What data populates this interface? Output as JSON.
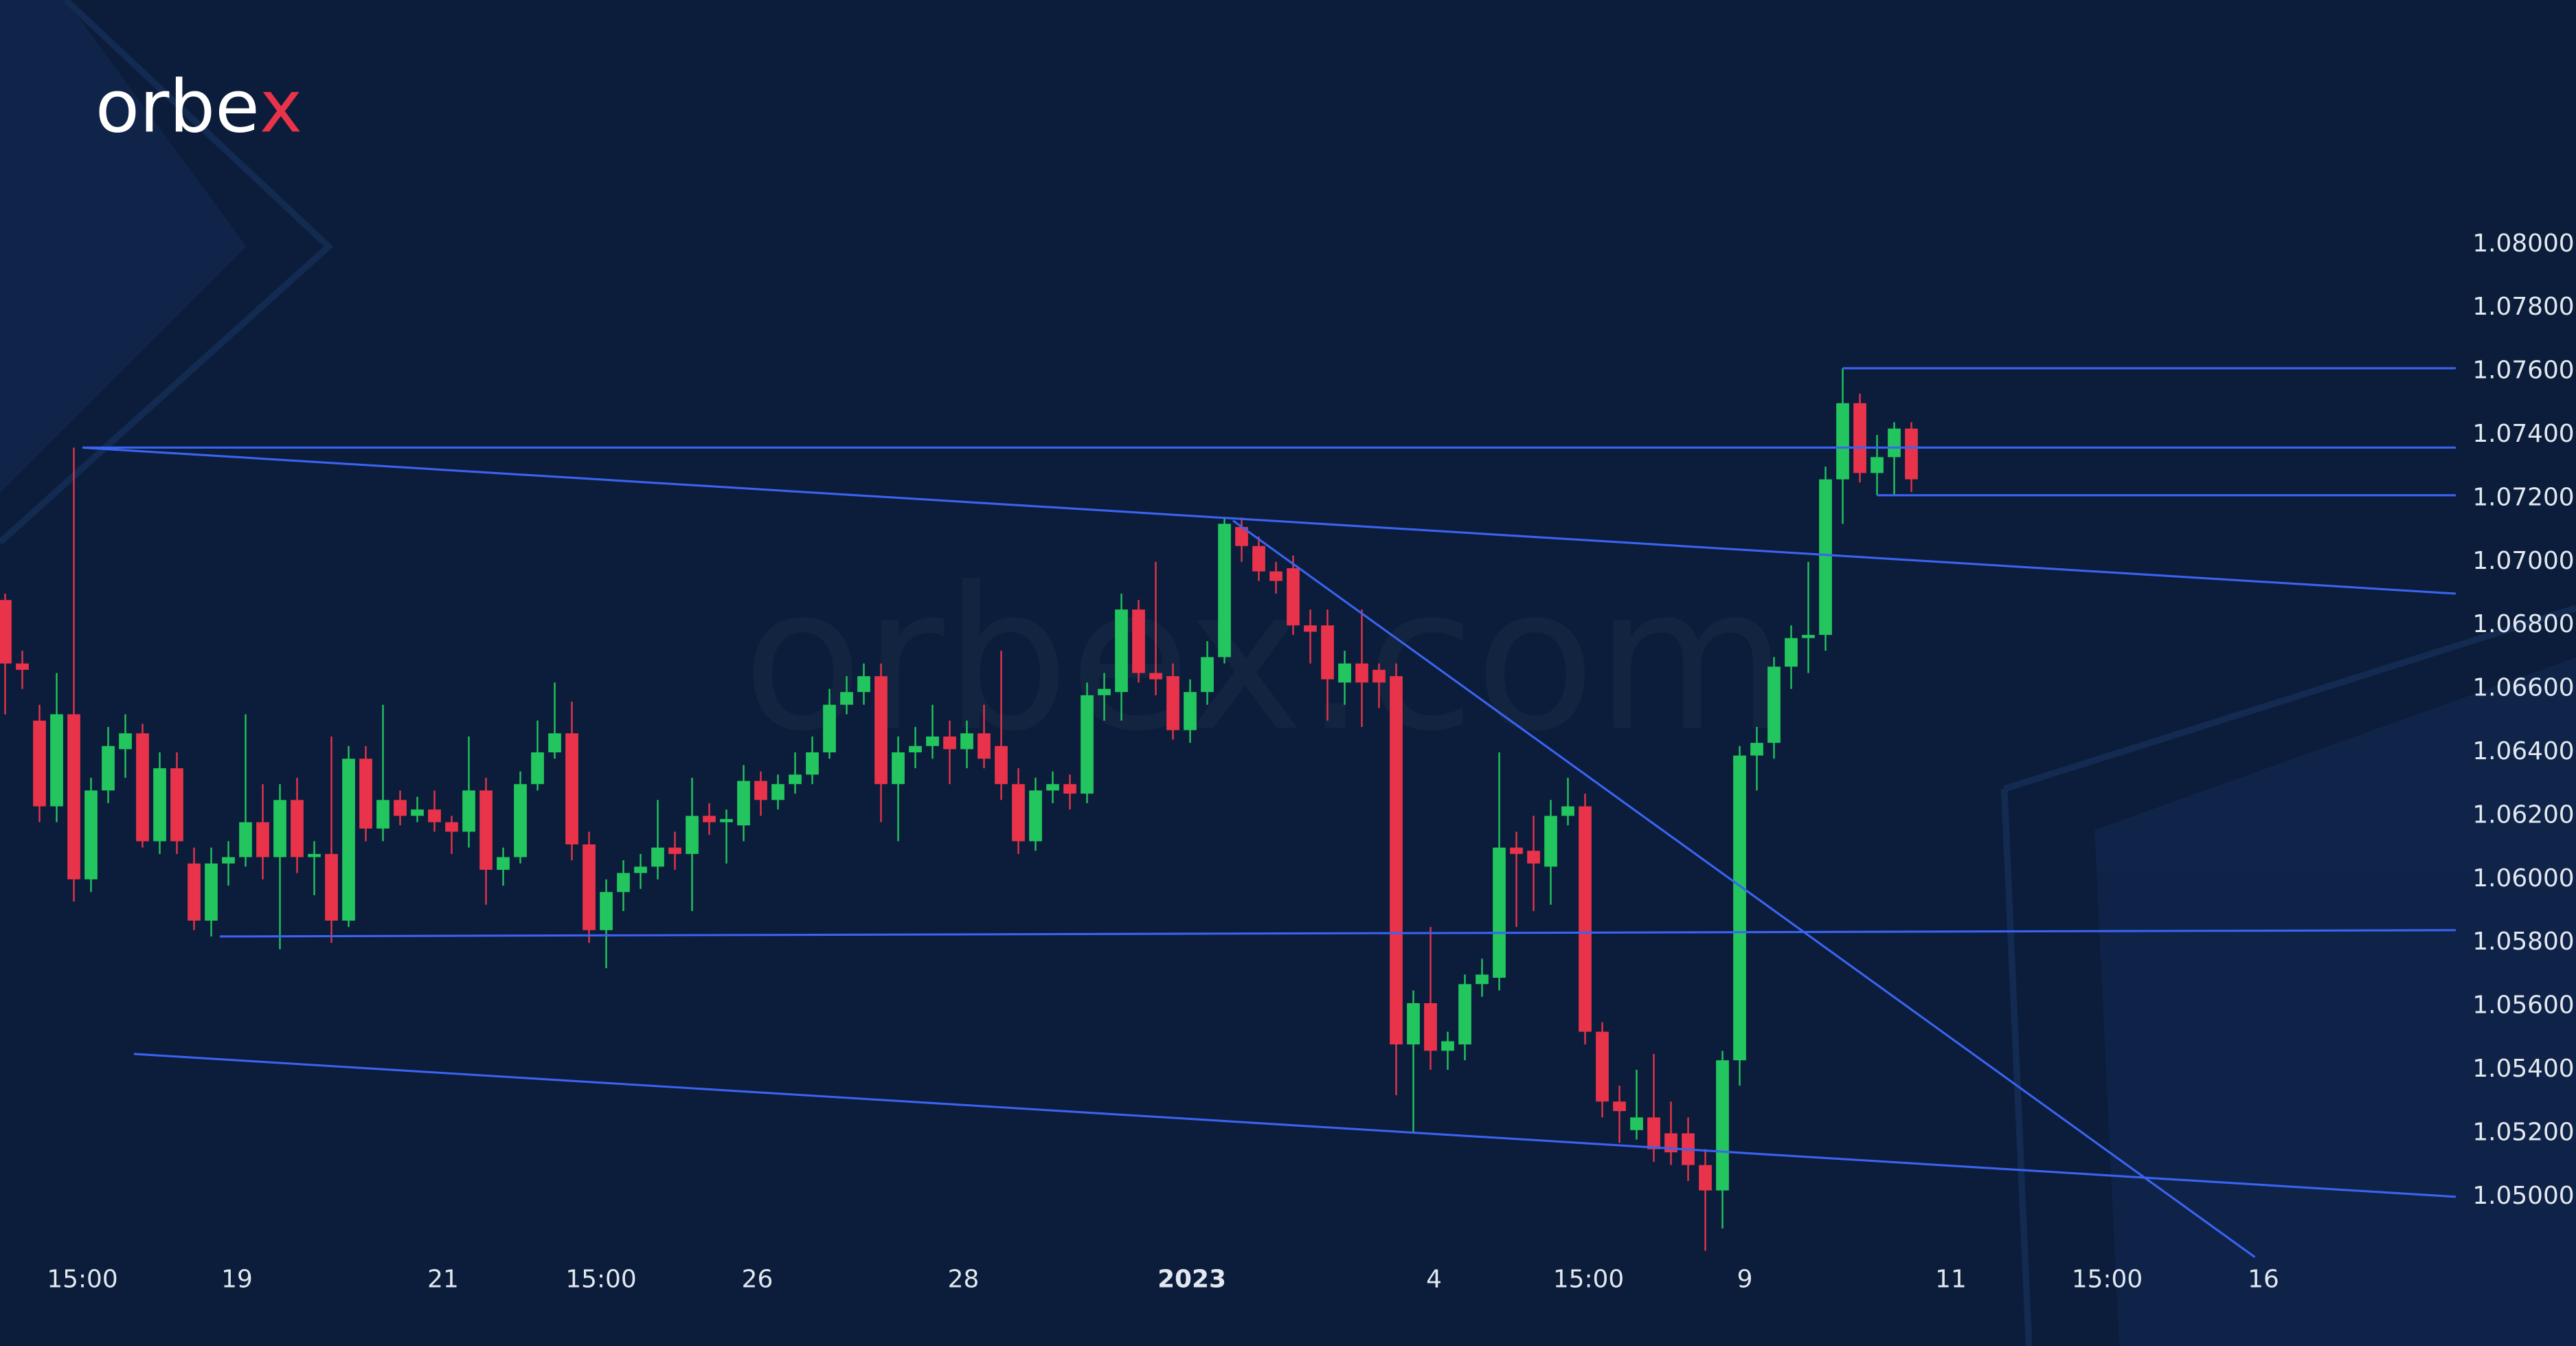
{
  "chart_data": {
    "type": "candlestick",
    "logo": [
      "orbe",
      "x"
    ],
    "watermark": "orbex.com",
    "background": "#0b1d3a",
    "up_color": "#22c55e",
    "down_color": "#e8334a",
    "line_color": "#3b63f2",
    "xlim": [
      -0.3,
      149.7
    ],
    "ylim": [
      1.0453,
      1.0877
    ],
    "yticks": [
      {
        "value": 1.08,
        "label": "1.08000"
      },
      {
        "value": 1.078,
        "label": "1.07800"
      },
      {
        "value": 1.076,
        "label": "1.07600"
      },
      {
        "value": 1.074,
        "label": "1.07400"
      },
      {
        "value": 1.072,
        "label": "1.07200"
      },
      {
        "value": 1.07,
        "label": "1.07000"
      },
      {
        "value": 1.068,
        "label": "1.06800"
      },
      {
        "value": 1.066,
        "label": "1.06600"
      },
      {
        "value": 1.064,
        "label": "1.06400"
      },
      {
        "value": 1.062,
        "label": "1.06200"
      },
      {
        "value": 1.06,
        "label": "1.06000"
      },
      {
        "value": 1.058,
        "label": "1.05800"
      },
      {
        "value": 1.056,
        "label": "1.05600"
      },
      {
        "value": 1.054,
        "label": "1.05400"
      },
      {
        "value": 1.052,
        "label": "1.05200"
      },
      {
        "value": 1.05,
        "label": "1.05000"
      }
    ],
    "xticks": [
      {
        "value": 4.5,
        "label": "15:00"
      },
      {
        "value": 13.5,
        "label": "19"
      },
      {
        "value": 25.5,
        "label": "21"
      },
      {
        "value": 34.7,
        "label": "15:00"
      },
      {
        "value": 43.8,
        "label": "26"
      },
      {
        "value": 55.8,
        "label": "28"
      },
      {
        "value": 69.1,
        "label": "2023",
        "bold": true
      },
      {
        "value": 83.2,
        "label": "4"
      },
      {
        "value": 92.2,
        "label": "15:00"
      },
      {
        "value": 101.3,
        "label": "9"
      },
      {
        "value": 113.3,
        "label": "11"
      },
      {
        "value": 122.4,
        "label": "15:00"
      },
      {
        "value": 131.5,
        "label": "16"
      }
    ],
    "open": [
      1.0688,
      1.0668,
      1.065,
      1.0623,
      1.0652,
      1.06,
      1.0628,
      1.0641,
      1.0646,
      1.0612,
      1.0635,
      1.0605,
      1.0587,
      1.0605,
      1.0607,
      1.0618,
      1.0607,
      1.0625,
      1.0607,
      1.0608,
      1.0587,
      1.0638,
      1.0616,
      1.0625,
      1.062,
      1.0622,
      1.0618,
      1.0615,
      1.0628,
      1.0603,
      1.0607,
      1.063,
      1.064,
      1.0646,
      1.0611,
      1.0584,
      1.0596,
      1.0602,
      1.0604,
      1.061,
      1.0608,
      1.062,
      1.0618,
      1.0617,
      1.0631,
      1.0625,
      1.063,
      1.0633,
      1.064,
      1.0655,
      1.0659,
      1.0664,
      1.063,
      1.064,
      1.0642,
      1.0645,
      1.0641,
      1.0646,
      1.0642,
      1.063,
      1.0612,
      1.0628,
      1.063,
      1.0627,
      1.0658,
      1.0659,
      1.0685,
      1.0665,
      1.0664,
      1.0647,
      1.0659,
      1.067,
      1.0711,
      1.0705,
      1.0697,
      1.0698,
      1.068,
      1.068,
      1.0662,
      1.0668,
      1.0666,
      1.0664,
      1.0548,
      1.0561,
      1.0546,
      1.0548,
      1.0567,
      1.0569,
      1.061,
      1.0609,
      1.0604,
      1.062,
      1.0623,
      1.0552,
      1.053,
      1.0521,
      1.0525,
      1.052,
      1.052,
      1.051,
      1.0502,
      1.0543,
      1.0639,
      1.0643,
      1.0667,
      1.0676,
      1.0677,
      1.0726,
      1.075,
      1.0728,
      1.0733,
      1.0742
    ],
    "high": [
      1.069,
      1.0672,
      1.0655,
      1.0665,
      1.0736,
      1.0632,
      1.0648,
      1.0652,
      1.0649,
      1.064,
      1.064,
      1.061,
      1.061,
      1.0612,
      1.0652,
      1.063,
      1.063,
      1.0632,
      1.0612,
      1.0645,
      1.0642,
      1.0642,
      1.0655,
      1.0628,
      1.0626,
      1.0628,
      1.062,
      1.0645,
      1.0632,
      1.061,
      1.0634,
      1.065,
      1.0662,
      1.0656,
      1.0615,
      1.06,
      1.0606,
      1.0608,
      1.0625,
      1.0615,
      1.0632,
      1.0624,
      1.0622,
      1.0636,
      1.0634,
      1.0633,
      1.064,
      1.0645,
      1.066,
      1.0664,
      1.0668,
      1.0668,
      1.0645,
      1.0648,
      1.0655,
      1.065,
      1.065,
      1.0655,
      1.0672,
      1.0635,
      1.0632,
      1.0634,
      1.0633,
      1.0662,
      1.0665,
      1.069,
      1.0688,
      1.07,
      1.0668,
      1.0663,
      1.0675,
      1.0714,
      1.0714,
      1.0708,
      1.07,
      1.0702,
      1.0685,
      1.0685,
      1.0672,
      1.0685,
      1.0668,
      1.0668,
      1.0565,
      1.0585,
      1.0552,
      1.057,
      1.0575,
      1.064,
      1.0615,
      1.062,
      1.0625,
      1.0632,
      1.0627,
      1.0555,
      1.0535,
      1.054,
      1.0545,
      1.053,
      1.0525,
      1.0515,
      1.0546,
      1.0642,
      1.0648,
      1.067,
      1.068,
      1.07,
      1.073,
      1.0761,
      1.0753,
      1.074,
      1.0744,
      1.0744
    ],
    "low": [
      1.0652,
      1.066,
      1.0618,
      1.0618,
      1.0593,
      1.0596,
      1.0624,
      1.0632,
      1.061,
      1.0608,
      1.0608,
      1.0584,
      1.0582,
      1.0598,
      1.0604,
      1.06,
      1.0578,
      1.0602,
      1.0595,
      1.058,
      1.0585,
      1.0612,
      1.0612,
      1.0617,
      1.0618,
      1.0615,
      1.0608,
      1.061,
      1.0592,
      1.0598,
      1.0605,
      1.0628,
      1.0638,
      1.0606,
      1.058,
      1.0572,
      1.059,
      1.0597,
      1.06,
      1.0603,
      1.059,
      1.0614,
      1.0605,
      1.0612,
      1.062,
      1.0622,
      1.0627,
      1.063,
      1.0638,
      1.0652,
      1.0655,
      1.0618,
      1.0612,
      1.0635,
      1.0638,
      1.063,
      1.0635,
      1.0635,
      1.0625,
      1.0608,
      1.0609,
      1.0624,
      1.0622,
      1.0624,
      1.065,
      1.065,
      1.0662,
      1.0658,
      1.0644,
      1.0643,
      1.0655,
      1.0668,
      1.07,
      1.0694,
      1.069,
      1.0677,
      1.0668,
      1.065,
      1.0655,
      1.0648,
      1.0654,
      1.0532,
      1.052,
      1.054,
      1.054,
      1.0543,
      1.0563,
      1.0565,
      1.0585,
      1.059,
      1.0592,
      1.0617,
      1.0548,
      1.0525,
      1.0517,
      1.0518,
      1.0511,
      1.051,
      1.0505,
      1.0483,
      1.049,
      1.0535,
      1.0628,
      1.0638,
      1.066,
      1.0665,
      1.0672,
      1.0712,
      1.0725,
      1.0721,
      1.0721,
      1.0722
    ],
    "close": [
      1.0668,
      1.0666,
      1.0623,
      1.0652,
      1.06,
      1.0628,
      1.0642,
      1.0646,
      1.0612,
      1.0635,
      1.0612,
      1.0587,
      1.0605,
      1.0607,
      1.0618,
      1.0607,
      1.0625,
      1.0607,
      1.0608,
      1.0587,
      1.0638,
      1.0616,
      1.0625,
      1.062,
      1.0622,
      1.0618,
      1.0615,
      1.0628,
      1.0603,
      1.0607,
      1.063,
      1.064,
      1.0646,
      1.0611,
      1.0584,
      1.0596,
      1.0602,
      1.0604,
      1.061,
      1.0608,
      1.062,
      1.0618,
      1.0619,
      1.0631,
      1.0625,
      1.063,
      1.0633,
      1.064,
      1.0655,
      1.0659,
      1.0664,
      1.063,
      1.064,
      1.0642,
      1.0645,
      1.0641,
      1.0646,
      1.0638,
      1.063,
      1.0612,
      1.0628,
      1.063,
      1.0627,
      1.0658,
      1.066,
      1.0685,
      1.0665,
      1.0663,
      1.0647,
      1.0659,
      1.067,
      1.0712,
      1.0705,
      1.0697,
      1.0694,
      1.068,
      1.0678,
      1.0663,
      1.0668,
      1.0662,
      1.0662,
      1.0548,
      1.0561,
      1.0546,
      1.0549,
      1.0567,
      1.057,
      1.061,
      1.0608,
      1.0605,
      1.062,
      1.0623,
      1.0552,
      1.053,
      1.0527,
      1.0525,
      1.0515,
      1.0514,
      1.051,
      1.0502,
      1.0543,
      1.0639,
      1.0643,
      1.0667,
      1.0676,
      1.0677,
      1.0726,
      1.075,
      1.0728,
      1.0733,
      1.0742,
      1.0726
    ],
    "trend_lines": [
      {
        "points": [
          [
            4.5,
            1.0736
          ],
          [
            142.7,
            1.0736
          ]
        ]
      },
      {
        "points": [
          [
            4.5,
            1.0736
          ],
          [
            142.7,
            1.069
          ]
        ]
      },
      {
        "points": [
          [
            107,
            1.0761
          ],
          [
            142.7,
            1.0761
          ]
        ]
      },
      {
        "points": [
          [
            109,
            1.0721
          ],
          [
            142.7,
            1.0721
          ]
        ]
      },
      {
        "points": [
          [
            12.5,
            1.0582
          ],
          [
            142.7,
            1.0584
          ]
        ]
      },
      {
        "points": [
          [
            7.5,
            1.0545
          ],
          [
            142.7,
            1.05
          ]
        ]
      },
      {
        "points": [
          [
            71.5,
            1.0713
          ],
          [
            131,
            1.0481
          ]
        ]
      }
    ]
  }
}
